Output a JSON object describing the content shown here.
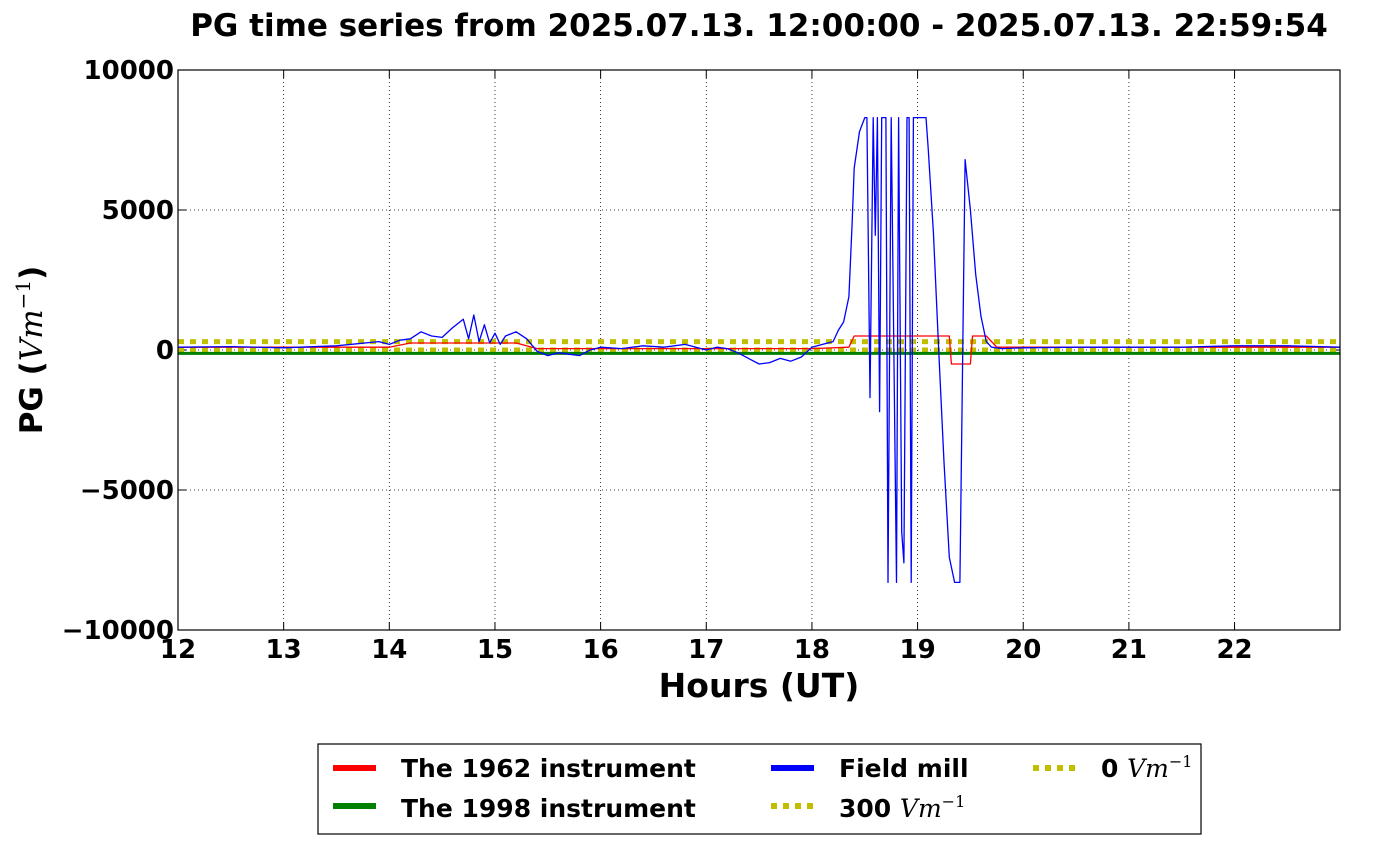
{
  "chart_data": {
    "type": "line",
    "title": "PG time series from 2025.07.13. 12:00:00 - 2025.07.13. 22:59:54",
    "xlabel": "Hours (UT)",
    "ylabel_prefix": "PG (",
    "ylabel_unit": "Vm",
    "ylabel_exp": "−1",
    "ylabel_suffix": ")",
    "xlim": [
      12,
      22.998
    ],
    "ylim": [
      -10000,
      10000
    ],
    "grid": true,
    "x_ticks": [
      12,
      13,
      14,
      15,
      16,
      17,
      18,
      19,
      20,
      21,
      22
    ],
    "y_ticks": [
      10000,
      5000,
      0,
      -5000,
      -10000
    ],
    "y_tick_labels": [
      "10000",
      "5000",
      "0",
      "−5000",
      "−10000"
    ],
    "legend": {
      "placement": "below",
      "entries": [
        {
          "label": "The 1962 instrument",
          "color": "#ff0000",
          "style": "solid"
        },
        {
          "label": "The 1998 instrument",
          "color": "#008000",
          "style": "solid"
        },
        {
          "label": "Field mill",
          "color": "#0000ff",
          "style": "solid"
        },
        {
          "label": "300 ",
          "unit": "Vm",
          "exp": "−1",
          "color": "#bfbf00",
          "style": "dotted"
        },
        {
          "label": "0 ",
          "unit": "Vm",
          "exp": "−1",
          "color": "#bfbf00",
          "style": "dotted"
        }
      ]
    },
    "series": [
      {
        "name": "Field mill",
        "color": "#0000ff",
        "x": [
          12.0,
          12.5,
          13.0,
          13.5,
          13.9,
          14.0,
          14.1,
          14.2,
          14.3,
          14.4,
          14.5,
          14.6,
          14.7,
          14.75,
          14.8,
          14.85,
          14.9,
          14.95,
          15.0,
          15.05,
          15.1,
          15.2,
          15.3,
          15.4,
          15.5,
          15.6,
          15.7,
          15.8,
          15.9,
          16.0,
          16.2,
          16.4,
          16.6,
          16.8,
          17.0,
          17.1,
          17.2,
          17.3,
          17.4,
          17.5,
          17.6,
          17.7,
          17.8,
          17.9,
          18.0,
          18.1,
          18.2,
          18.25,
          18.3,
          18.35,
          18.38,
          18.4,
          18.45,
          18.5,
          18.52,
          18.55,
          18.58,
          18.6,
          18.62,
          18.64,
          18.66,
          18.7,
          18.72,
          18.75,
          18.8,
          18.82,
          18.85,
          18.87,
          18.9,
          18.92,
          18.94,
          18.96,
          19.0,
          19.03,
          19.05,
          19.08,
          19.1,
          19.15,
          19.2,
          19.25,
          19.3,
          19.35,
          19.4,
          19.45,
          19.5,
          19.55,
          19.6,
          19.65,
          19.7,
          19.75,
          19.8,
          20.0,
          20.5,
          21.0,
          21.5,
          22.0,
          22.5,
          22.998
        ],
        "y": [
          100,
          120,
          80,
          150,
          300,
          200,
          350,
          400,
          650,
          500,
          450,
          800,
          1100,
          400,
          1250,
          300,
          900,
          250,
          600,
          200,
          500,
          650,
          400,
          -50,
          -200,
          -100,
          -150,
          -200,
          0,
          100,
          50,
          150,
          100,
          200,
          0,
          100,
          50,
          -100,
          -300,
          -500,
          -450,
          -300,
          -400,
          -250,
          100,
          200,
          300,
          700,
          1000,
          1900,
          4500,
          6500,
          7800,
          8300,
          8300,
          -1700,
          8300,
          4100,
          8300,
          -2200,
          8300,
          8300,
          -8300,
          8300,
          -8300,
          8300,
          -6500,
          -7600,
          8300,
          8300,
          -8300,
          8300,
          8300,
          8300,
          8300,
          8300,
          7200,
          4200,
          0,
          -4000,
          -7400,
          -8300,
          -8300,
          6800,
          5000,
          2700,
          1200,
          300,
          100,
          80,
          50,
          80,
          100,
          100,
          100,
          150,
          150,
          100
        ]
      },
      {
        "name": "The 1962 instrument",
        "color": "#ff0000",
        "x": [
          12.0,
          14.0,
          14.2,
          15.2,
          15.4,
          18.0,
          18.35,
          18.4,
          19.3,
          19.32,
          19.5,
          19.52,
          19.65,
          19.75,
          20.0,
          22.998
        ],
        "y": [
          100,
          100,
          250,
          250,
          50,
          50,
          100,
          500,
          500,
          -500,
          -500,
          500,
          500,
          100,
          100,
          100
        ]
      },
      {
        "name": "The 1998 instrument",
        "color": "#008000",
        "x": [
          12.0,
          22.998
        ],
        "y": [
          -120,
          -120
        ]
      },
      {
        "name": "300 ",
        "color": "#bfbf00",
        "x": [
          12.0,
          22.998
        ],
        "y": [
          300,
          300
        ]
      },
      {
        "name": "0 ",
        "color": "#bfbf00",
        "x": [
          12.0,
          22.998
        ],
        "y": [
          0,
          0
        ]
      }
    ]
  }
}
